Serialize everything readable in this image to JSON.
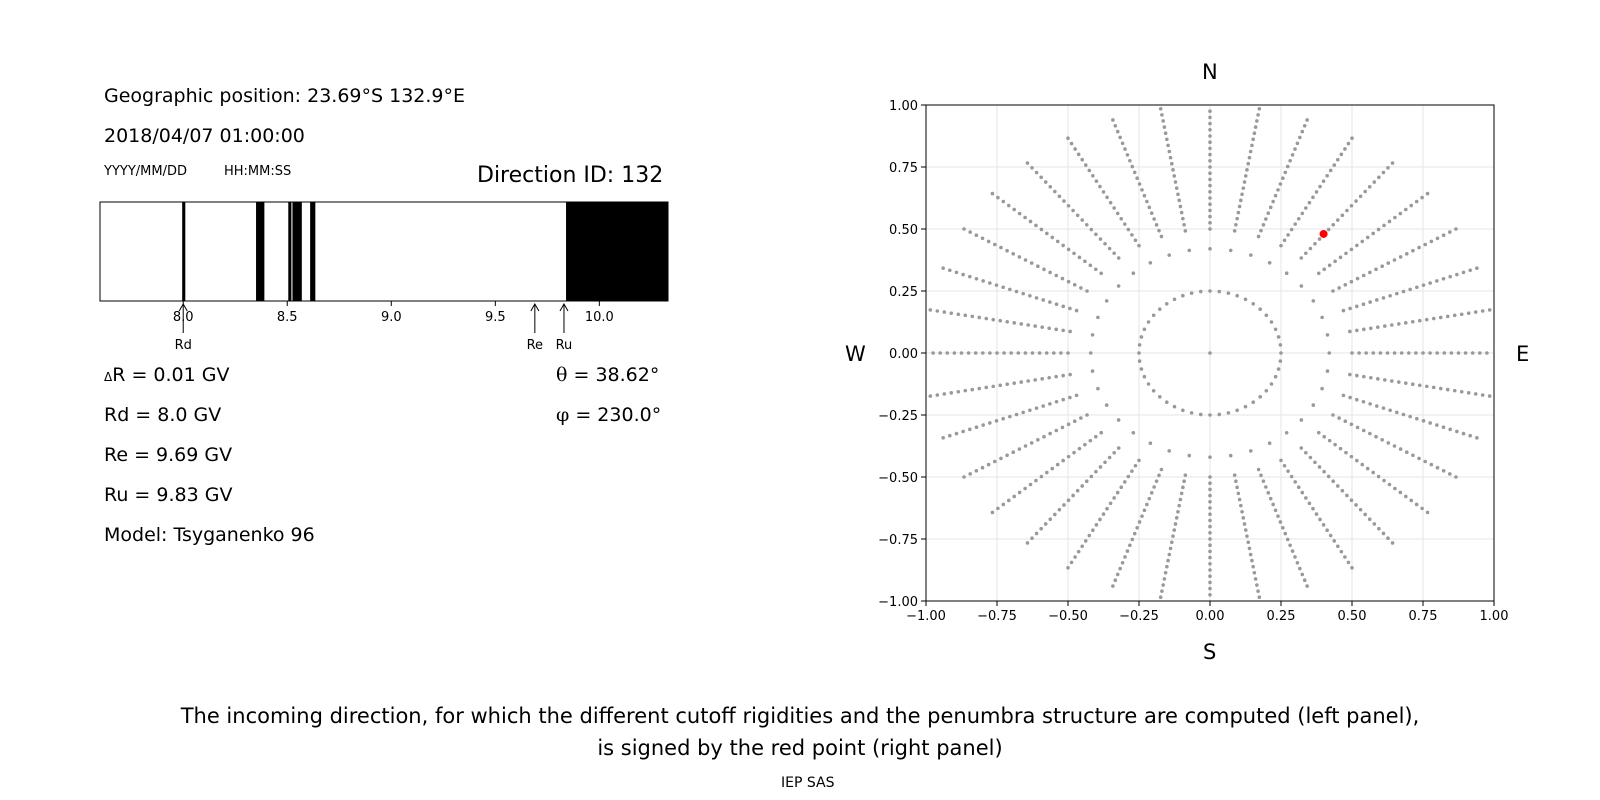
{
  "left_panel": {
    "geo_position": "Geographic position: 23.69°S 132.9°E",
    "datetime": "2018/04/07 01:00:00",
    "date_format": "YYYY/MM/DD",
    "time_format": "HH:MM:SS",
    "direction_id": "Direction ID: 132",
    "delta_r_symbol": "Δ",
    "delta_r": "R = 0.01 GV",
    "rd": "Rd = 8.0 GV",
    "re": "Re = 9.69 GV",
    "ru": "Ru = 9.83 GV",
    "model": "Model: Tsyganenko 96",
    "theta_symbol": "θ",
    "theta": " = 38.62°",
    "phi_symbol": "φ",
    "phi": " = 230.0°"
  },
  "right_panel": {
    "north": "N",
    "south": "S",
    "west": "W",
    "east": "E"
  },
  "caption": {
    "line1": "The incoming direction, for which the different cutoff rigidities and the penumbra structure are computed (left panel),",
    "line2": "is signed by the red point (right panel)",
    "credit": "IEP SAS"
  },
  "chart_data": [
    {
      "type": "bar",
      "name": "penumbra",
      "xlim": [
        7.6,
        10.33
      ],
      "xticks": [
        8.0,
        8.5,
        9.0,
        9.5,
        10.0
      ],
      "xtick_labels": [
        "8.0",
        "8.5",
        "9.0",
        "9.5",
        "10.0"
      ],
      "forbidden_bands": [
        [
          7.995,
          8.01
        ],
        [
          8.35,
          8.39
        ],
        [
          8.505,
          8.52
        ],
        [
          8.525,
          8.57
        ],
        [
          8.61,
          8.635
        ],
        [
          9.84,
          10.33
        ]
      ],
      "markers": [
        {
          "label": "Rd",
          "value": 8.0
        },
        {
          "label": "Re",
          "value": 9.69
        },
        {
          "label": "Ru",
          "value": 9.83
        }
      ]
    },
    {
      "type": "scatter",
      "name": "direction-grid",
      "xlim": [
        -1.0,
        1.0
      ],
      "ylim": [
        -1.0,
        1.0
      ],
      "xticks": [
        -1.0,
        -0.75,
        -0.5,
        -0.25,
        0.0,
        0.25,
        0.5,
        0.75,
        1.0
      ],
      "xtick_labels": [
        "−1.00",
        "−0.75",
        "−0.50",
        "−0.25",
        "0.00",
        "0.25",
        "0.50",
        "0.75",
        "1.00"
      ],
      "yticks": [
        -1.0,
        -0.75,
        -0.5,
        -0.25,
        0.0,
        0.25,
        0.5,
        0.75,
        1.0
      ],
      "ytick_labels": [
        "−1.00",
        "−0.75",
        "−0.50",
        "−0.25",
        "0.00",
        "0.25",
        "0.50",
        "0.75",
        "1.00"
      ],
      "grid": true,
      "grid_points": {
        "inner_radius": 0.25,
        "inner_count": 48,
        "ring_radius": 0.42,
        "ring_count": 36,
        "ray_count": 36,
        "ray_r_start": 0.5,
        "ray_r_end": 1.0,
        "ray_r_step": 0.025,
        "center": [
          0.0,
          0.0
        ],
        "color": "#999999"
      },
      "highlight_point": {
        "x": 0.4,
        "y": 0.48,
        "color": "#ff0000"
      }
    }
  ]
}
